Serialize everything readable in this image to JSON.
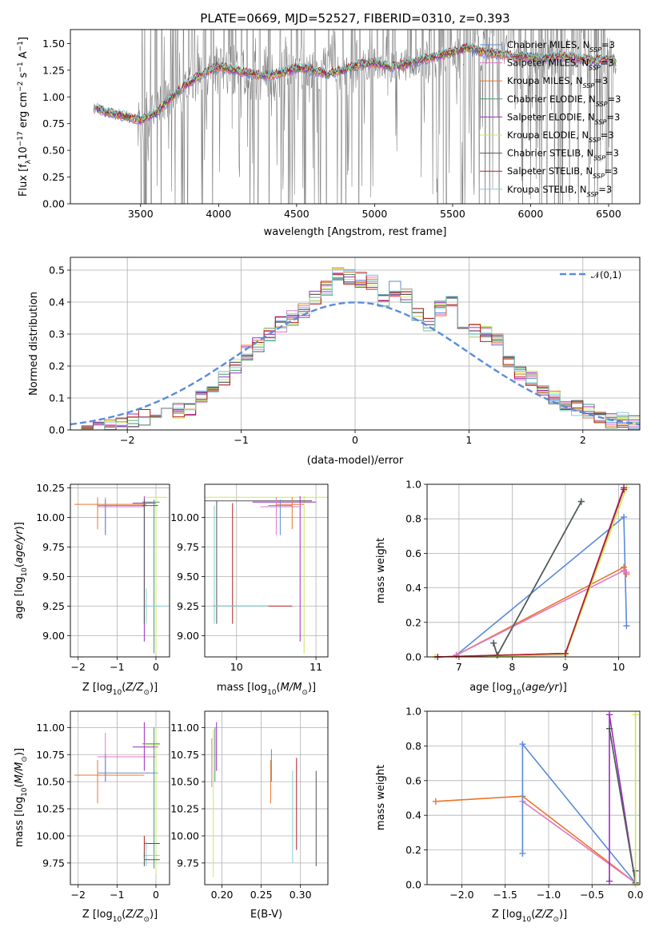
{
  "title": "PLATE=0669, MJD=52527, FIBERID=0310, z=0.393",
  "colors": {
    "chabrier_miles": "#5b8bd9",
    "salpeter_miles": "#e377c2",
    "kroupa_miles": "#e8762a",
    "chabrier_elodie": "#4c9a6a",
    "salpeter_elodie": "#9b2dbd",
    "kroupa_elodie": "#cce85a",
    "chabrier_stelib": "#555555",
    "salpeter_stelib": "#b22222",
    "kroupa_stelib": "#7fcfd0",
    "data": "#808080",
    "grid": "#b0b0b0"
  },
  "chart_data": [
    {
      "id": "spectrum",
      "type": "line",
      "title": "PLATE=0669, MJD=52527, FIBERID=0310, z=0.393",
      "xlabel": "wavelength [Angstrom, rest frame]",
      "ylabel": "Flux [f_λ 10^-17 erg cm^-2 s^-1 A^-1]",
      "xlim": [
        3050,
        6700
      ],
      "ylim": [
        0,
        1.63
      ],
      "xticks": [
        "3500",
        "4000",
        "4500",
        "5000",
        "5500",
        "6000",
        "6500"
      ],
      "yticks": [
        "0.00",
        "0.25",
        "0.50",
        "0.75",
        "1.00",
        "1.25",
        "1.50"
      ],
      "legend_position": "upper right",
      "legend": [
        "Chabrier MILES, N_SSP=3",
        "Salpeter MILES, N_SSP=3",
        "Kroupa MILES, N_SSP=3",
        "Chabrier ELODIE, N_SSP=3",
        "Salpeter ELODIE, N_SSP=3",
        "Kroupa ELODIE, N_SSP=3",
        "Chabrier STELIB, N_SSP=3",
        "Salpeter STELIB, N_SSP=3",
        "Kroupa STELIB, N_SSP=3"
      ],
      "model_continuum": {
        "x": [
          3200,
          3300,
          3400,
          3500,
          3600,
          3700,
          3800,
          3900,
          4000,
          4100,
          4200,
          4300,
          4400,
          4500,
          4600,
          4700,
          4800,
          4900,
          5000,
          5100,
          5200,
          5300,
          5400,
          5500,
          5600,
          5700,
          5800,
          5900,
          6000,
          6100,
          6200,
          6300,
          6400,
          6500,
          6550
        ],
        "y": [
          0.9,
          0.85,
          0.82,
          0.78,
          0.85,
          1.0,
          1.12,
          1.22,
          1.28,
          1.25,
          1.22,
          1.2,
          1.22,
          1.27,
          1.25,
          1.22,
          1.25,
          1.3,
          1.32,
          1.28,
          1.3,
          1.35,
          1.38,
          1.42,
          1.46,
          1.42,
          1.4,
          1.38,
          1.37,
          1.36,
          1.38,
          1.36,
          1.34,
          1.36,
          1.33
        ]
      }
    },
    {
      "id": "residuals",
      "type": "histogram",
      "xlabel": "(data-model)/error",
      "ylabel": "Normed distribution",
      "xlim": [
        -2.5,
        2.5
      ],
      "ylim": [
        0,
        0.54
      ],
      "xticks": [
        "−2",
        "−1",
        "0",
        "1",
        "2"
      ],
      "yticks": [
        "0.0",
        "0.1",
        "0.2",
        "0.3",
        "0.4",
        "0.5"
      ],
      "legend": [
        "𝒩(0,1)"
      ],
      "legend_position": "upper right",
      "bin_width": 0.1,
      "bin_start": -2.5,
      "density": [
        0.0,
        0.0,
        0.0,
        0.01,
        0.02,
        0.03,
        0.04,
        0.05,
        0.06,
        0.06,
        0.07,
        0.1,
        0.12,
        0.16,
        0.2,
        0.24,
        0.27,
        0.3,
        0.33,
        0.35,
        0.37,
        0.41,
        0.44,
        0.49,
        0.48,
        0.47,
        0.46,
        0.4,
        0.44,
        0.42,
        0.36,
        0.33,
        0.38,
        0.4,
        0.34,
        0.31,
        0.3,
        0.28,
        0.22,
        0.18,
        0.16,
        0.12,
        0.1,
        0.08,
        0.07,
        0.06,
        0.04,
        0.03,
        0.03,
        0.02
      ],
      "gaussian": "N(0,1)"
    },
    {
      "id": "age_vs_Z",
      "type": "errorbar",
      "xlabel": "Z [log10(Z/Z⊙)]",
      "ylabel": "age  [log10(age/yr)]",
      "xlim": [
        -2.2,
        0.35
      ],
      "ylim": [
        8.82,
        10.28
      ],
      "xticks": [
        "−2",
        "−1",
        "0"
      ],
      "yticks": [
        "9.00",
        "9.25",
        "9.50",
        "9.75",
        "10.00",
        "10.25"
      ]
    },
    {
      "id": "age_vs_mass",
      "type": "errorbar",
      "xlabel": "mass [log10(M/M⊙)]",
      "ylabel": "",
      "xlim": [
        9.6,
        11.15
      ],
      "ylim": [
        8.82,
        10.28
      ],
      "xticks": [
        "10",
        "11"
      ],
      "yticks": [
        "9.00",
        "9.25",
        "9.50",
        "9.75",
        "10.00"
      ]
    },
    {
      "id": "weight_vs_age",
      "type": "line",
      "xlabel": "age  [log10(age/yr)]",
      "ylabel": "mass weight",
      "xlim": [
        6.4,
        10.4
      ],
      "ylim": [
        0,
        1
      ],
      "xticks": [
        "7",
        "8",
        "9",
        "10"
      ],
      "yticks": [
        "0.0",
        "0.2",
        "0.4",
        "0.6",
        "0.8",
        "1.0"
      ],
      "series": [
        {
          "key": "chabrier_miles",
          "x": [
            6.95,
            10.1,
            10.15
          ],
          "y": [
            0.01,
            0.81,
            0.18
          ]
        },
        {
          "key": "kroupa_miles",
          "x": [
            6.95,
            10.1,
            10.15
          ],
          "y": [
            0.01,
            0.52,
            0.48
          ]
        },
        {
          "key": "salpeter_miles",
          "x": [
            6.95,
            10.1,
            10.15
          ],
          "y": [
            0.01,
            0.5,
            0.49
          ]
        },
        {
          "key": "chabrier_elodie",
          "x": [
            7.65,
            7.72,
            9.3
          ],
          "y": [
            0.08,
            0.01,
            0.9
          ]
        },
        {
          "key": "kroupa_stelib",
          "x": [
            7.65,
            7.72,
            9.3
          ],
          "y": [
            0.08,
            0.01,
            0.9
          ]
        },
        {
          "key": "chabrier_stelib",
          "x": [
            7.65,
            7.72,
            9.3
          ],
          "y": [
            0.08,
            0.01,
            0.9
          ]
        },
        {
          "key": "kroupa_elodie",
          "x": [
            6.55,
            9.0,
            10.15
          ],
          "y": [
            0.0,
            0.01,
            0.98
          ]
        },
        {
          "key": "salpeter_elodie",
          "x": [
            6.6,
            9.0,
            10.1
          ],
          "y": [
            0.0,
            0.02,
            0.98
          ]
        },
        {
          "key": "salpeter_stelib",
          "x": [
            6.6,
            9.0,
            10.1
          ],
          "y": [
            0.0,
            0.02,
            0.97
          ]
        }
      ]
    },
    {
      "id": "mass_vs_Z",
      "type": "errorbar",
      "xlabel": "Z [log10(Z/Z⊙)]",
      "ylabel": "mass [log10(M/M⊙)]",
      "xlim": [
        -2.2,
        0.35
      ],
      "ylim": [
        9.55,
        11.15
      ],
      "xticks": [
        "−2",
        "−1",
        "0"
      ],
      "yticks": [
        "9.75",
        "10.00",
        "10.25",
        "10.50",
        "10.75",
        "11.00"
      ]
    },
    {
      "id": "mass_vs_ebv",
      "type": "errorbar",
      "xlabel": "E(B-V)",
      "ylabel": "",
      "xlim": [
        0.178,
        0.335
      ],
      "ylim": [
        9.55,
        11.15
      ],
      "xticks": [
        "0.20",
        "0.25",
        "0.30"
      ],
      "yticks": [
        "9.75",
        "10.00",
        "10.25",
        "10.50",
        "10.75",
        "11.00"
      ]
    },
    {
      "id": "weight_vs_Z",
      "type": "line",
      "xlabel": "Z [log10(Z/Z⊙)]",
      "ylabel": "mass weight",
      "xlim": [
        -2.4,
        0.05
      ],
      "ylim": [
        0,
        1
      ],
      "xticks": [
        "−2.0",
        "−1.5",
        "−1.0",
        "−0.5",
        "0.0"
      ],
      "yticks": [
        "0.0",
        "0.2",
        "0.4",
        "0.6",
        "0.8",
        "1.0"
      ],
      "series": [
        {
          "key": "kroupa_miles",
          "x": [
            -2.3,
            -1.3,
            0.0
          ],
          "y": [
            0.48,
            0.51,
            0.01
          ]
        },
        {
          "key": "salpeter_miles",
          "x": [
            -1.3,
            0.0
          ],
          "y": [
            0.48,
            0.01
          ]
        },
        {
          "key": "chabrier_miles",
          "x": [
            -1.3,
            -1.3,
            0.0
          ],
          "y": [
            0.18,
            0.81,
            0.01
          ]
        },
        {
          "key": "salpeter_elodie",
          "x": [
            -0.3,
            -0.3,
            0.0
          ],
          "y": [
            0.02,
            0.98,
            0.01
          ]
        },
        {
          "key": "kroupa_stelib",
          "x": [
            -0.3,
            0.0,
            0.0
          ],
          "y": [
            0.9,
            0.01,
            0.08
          ]
        },
        {
          "key": "chabrier_stelib",
          "x": [
            -0.3,
            0.0,
            0.0
          ],
          "y": [
            0.9,
            0.01,
            0.08
          ]
        },
        {
          "key": "kroupa_elodie",
          "x": [
            0.0,
            0.0
          ],
          "y": [
            0.0,
            0.98
          ]
        }
      ]
    }
  ]
}
